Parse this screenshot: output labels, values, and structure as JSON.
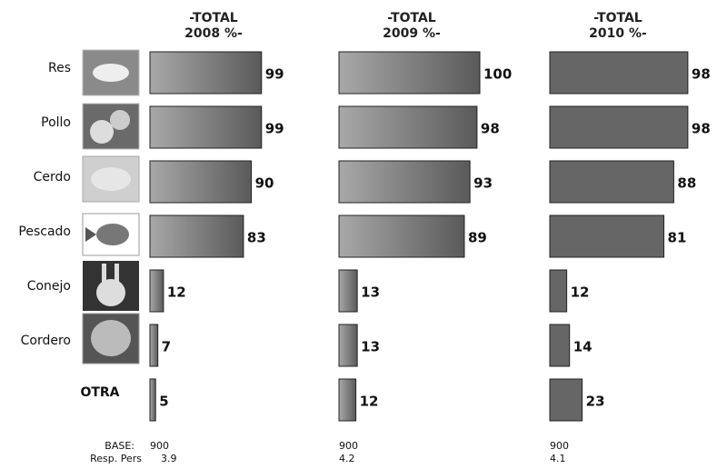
{
  "base_label": "BASE:",
  "resp_label": "Resp. Pers",
  "chart_data": [
    {
      "type": "bar",
      "title": [
        "-TOTAL",
        "2008 %-"
      ],
      "categories": [
        "Res",
        "Pollo",
        "Cerdo",
        "Pescado",
        "Conejo",
        "Cordero",
        "OTRA"
      ],
      "values": [
        99,
        99,
        90,
        83,
        12,
        7,
        5
      ],
      "xlim": [
        0,
        125
      ],
      "color": "gradient",
      "base": "900",
      "resp_pers": "3.9"
    },
    {
      "type": "bar",
      "title": [
        "-TOTAL",
        "2009 %-"
      ],
      "values": [
        100,
        98,
        93,
        89,
        13,
        13,
        12
      ],
      "xlim": [
        0,
        100
      ],
      "color": "gradient",
      "base": "900",
      "resp_pers": "4.2"
    },
    {
      "type": "bar",
      "title": [
        "-TOTAL",
        "2010 %-"
      ],
      "values": [
        98,
        98,
        88,
        81,
        12,
        14,
        23
      ],
      "xlim": [
        0,
        100
      ],
      "color": "#666666",
      "base": "900",
      "resp_pers": "4.1"
    }
  ]
}
